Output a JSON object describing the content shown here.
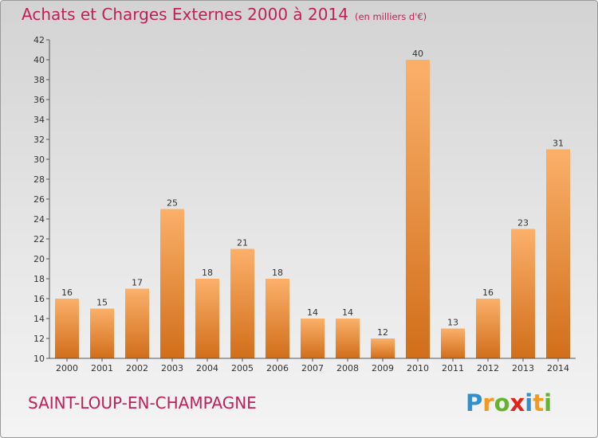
{
  "title": "Achats et Charges Externes 2000 à 2014",
  "unit_label": "(en milliers d'€)",
  "commune": "SAINT-LOUP-EN-CHAMPAGNE",
  "logo": {
    "letters": [
      "P",
      "r",
      "o",
      "x",
      "i",
      "t",
      "i"
    ],
    "colors": [
      "#2f8fd0",
      "#f29a1f",
      "#64b52d",
      "#e2231a",
      "#2f8fd0",
      "#f29a1f",
      "#64b52d"
    ]
  },
  "colors": {
    "bar_light": "#fbb06a",
    "bar_dark": "#d16e1a",
    "text": "#333333",
    "brand": "#c0205a"
  },
  "chart_data": {
    "type": "bar",
    "categories": [
      "2000",
      "2001",
      "2002",
      "2003",
      "2004",
      "2005",
      "2006",
      "2007",
      "2008",
      "2009",
      "2010",
      "2011",
      "2012",
      "2013",
      "2014"
    ],
    "values": [
      16,
      15,
      17,
      25,
      18,
      21,
      18,
      14,
      14,
      12,
      40,
      13,
      16,
      23,
      31
    ],
    "ylim": [
      10,
      42
    ],
    "yticks": [
      10,
      12,
      14,
      16,
      18,
      20,
      22,
      24,
      26,
      28,
      30,
      32,
      34,
      36,
      38,
      40,
      42
    ],
    "grid": false,
    "legend": false,
    "data_labels": true
  }
}
